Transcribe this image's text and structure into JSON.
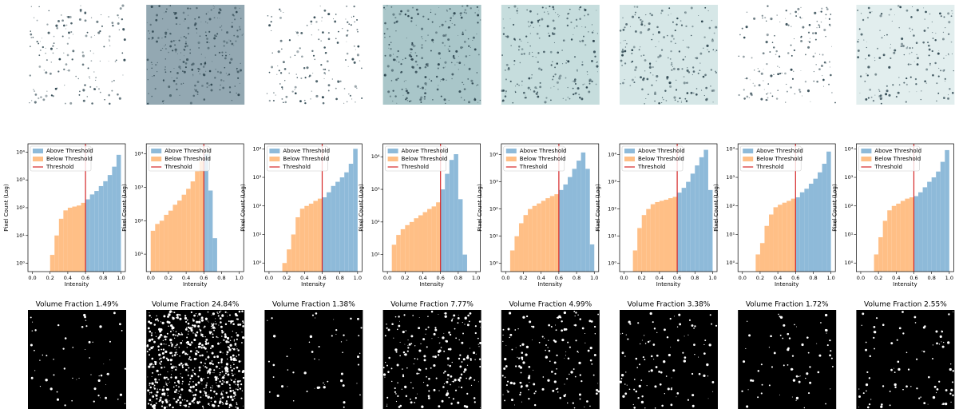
{
  "chart_data": [
    {
      "type": "histogram",
      "xlabel": "Intensity",
      "ylabel": "Pixel Count (Log)",
      "yscale": "log",
      "legend": "upper left",
      "bins": [
        0,
        0.05,
        0.1,
        0.15,
        0.2,
        0.25,
        0.3,
        0.35,
        0.4,
        0.45,
        0.5,
        0.55,
        0.6,
        0.65,
        0.7,
        0.75,
        0.8,
        0.85,
        0.9,
        0.95,
        1
      ],
      "series": [
        {
          "name": "Above Threshold",
          "color": "#8ebad9",
          "values": [
            null,
            null,
            null,
            null,
            null,
            null,
            null,
            null,
            null,
            null,
            null,
            null,
            200,
            300,
            400,
            600,
            900,
            1500,
            3000,
            8000
          ]
        },
        {
          "name": "Below Threshold",
          "color": "#ffbf86",
          "values": [
            null,
            null,
            null,
            null,
            2,
            10,
            40,
            80,
            100,
            110,
            120,
            150,
            null,
            null,
            null,
            null,
            null,
            null,
            null,
            null
          ]
        }
      ],
      "threshold": {
        "name": "Threshold",
        "value": 0.6,
        "color": "#d62728"
      },
      "xlim": [
        -0.05,
        1.05
      ],
      "xticks": [
        {
          "value": 0,
          "label": "0.0"
        },
        0.2,
        0.4,
        0.6,
        0.8,
        {
          "value": 1,
          "label": "1.0"
        }
      ],
      "ylim": [
        0.5,
        20000
      ],
      "yticks": [
        {
          "value": 1,
          "label": "10⁰"
        },
        {
          "value": 10,
          "label": "10¹"
        },
        {
          "value": 100,
          "label": "10²"
        },
        {
          "value": 1000,
          "label": "10³"
        },
        {
          "value": 10000,
          "label": "10⁴"
        }
      ]
    },
    {
      "type": "histogram",
      "xlabel": "Intensity",
      "ylabel": "Pixel Count (Log)",
      "yscale": "log",
      "legend": "upper left",
      "bins": [
        0,
        0.05,
        0.1,
        0.15,
        0.2,
        0.25,
        0.3,
        0.35,
        0.4,
        0.45,
        0.5,
        0.55,
        0.6,
        0.65,
        0.7,
        0.75,
        0.8,
        0.85,
        0.9,
        0.95,
        1
      ],
      "series": [
        {
          "name": "Above Threshold",
          "color": "#8ebad9",
          "values": [
            null,
            null,
            null,
            null,
            null,
            null,
            null,
            null,
            null,
            null,
            null,
            null,
            10000,
            800,
            30,
            2,
            null,
            null,
            null,
            null
          ]
        },
        {
          "name": "Below Threshold",
          "color": "#ffbf86",
          "values": [
            50,
            80,
            100,
            150,
            200,
            300,
            400,
            600,
            900,
            1500,
            3000,
            6000,
            null,
            null,
            null,
            null,
            null,
            null,
            null,
            null
          ]
        }
      ],
      "threshold": {
        "name": "Threshold",
        "value": 0.6,
        "color": "#d62728"
      },
      "xlim": [
        -0.05,
        1.05
      ],
      "xticks": [
        {
          "value": 0,
          "label": "0.0"
        },
        0.2,
        0.4,
        0.6,
        0.8,
        {
          "value": 1,
          "label": "1.0"
        }
      ],
      "ylim": [
        3,
        20000
      ],
      "yticks": [
        {
          "value": 10,
          "label": "10¹"
        },
        {
          "value": 100,
          "label": "10²"
        },
        {
          "value": 1000,
          "label": "10³"
        },
        {
          "value": 10000,
          "label": "10⁴"
        }
      ]
    },
    {
      "type": "histogram",
      "xlabel": "Intensity",
      "ylabel": "Pixel Count (Log)",
      "yscale": "log",
      "legend": "upper left",
      "bins": [
        0,
        0.05,
        0.1,
        0.15,
        0.2,
        0.25,
        0.3,
        0.35,
        0.4,
        0.45,
        0.5,
        0.55,
        0.6,
        0.65,
        0.7,
        0.75,
        0.8,
        0.85,
        0.9,
        0.95,
        1
      ],
      "series": [
        {
          "name": "Above Threshold",
          "color": "#8ebad9",
          "values": [
            null,
            null,
            null,
            null,
            null,
            null,
            null,
            null,
            null,
            null,
            null,
            null,
            200,
            300,
            500,
            700,
            1000,
            1500,
            3000,
            10000
          ]
        },
        {
          "name": "Below Threshold",
          "color": "#ffbf86",
          "values": [
            null,
            null,
            null,
            1,
            3,
            10,
            40,
            80,
            100,
            120,
            150,
            180,
            null,
            null,
            null,
            null,
            null,
            null,
            null,
            null
          ]
        }
      ],
      "threshold": {
        "name": "Threshold",
        "value": 0.6,
        "color": "#d62728"
      },
      "xlim": [
        -0.05,
        1.05
      ],
      "xticks": [
        {
          "value": 0,
          "label": "0.0"
        },
        0.2,
        0.4,
        0.6,
        0.8,
        {
          "value": 1,
          "label": "1.0"
        }
      ],
      "ylim": [
        0.5,
        15000
      ],
      "yticks": [
        {
          "value": 1,
          "label": "10⁰"
        },
        {
          "value": 10,
          "label": "10¹"
        },
        {
          "value": 100,
          "label": "10²"
        },
        {
          "value": 1000,
          "label": "10³"
        },
        {
          "value": 10000,
          "label": "10⁴"
        }
      ]
    },
    {
      "type": "histogram",
      "xlabel": "Intensity",
      "ylabel": "Pixel Count (Log)",
      "yscale": "log",
      "legend": "upper left",
      "bins": [
        0,
        0.05,
        0.1,
        0.15,
        0.2,
        0.25,
        0.3,
        0.35,
        0.4,
        0.45,
        0.5,
        0.55,
        0.6,
        0.65,
        0.7,
        0.75,
        0.8,
        0.85,
        0.9,
        0.95,
        1
      ],
      "series": [
        {
          "name": "Above Threshold",
          "color": "#8ebad9",
          "values": [
            null,
            null,
            null,
            null,
            null,
            null,
            null,
            null,
            null,
            null,
            null,
            null,
            1000,
            3000,
            8000,
            12000,
            500,
            10,
            null,
            null
          ]
        },
        {
          "name": "Below Threshold",
          "color": "#ffbf86",
          "values": [
            null,
            20,
            40,
            60,
            80,
            100,
            130,
            160,
            200,
            250,
            300,
            400,
            null,
            null,
            null,
            null,
            null,
            null,
            null,
            null
          ]
        }
      ],
      "threshold": {
        "name": "Threshold",
        "value": 0.6,
        "color": "#d62728"
      },
      "xlim": [
        -0.05,
        1.05
      ],
      "xticks": [
        {
          "value": 0,
          "label": "0.0"
        },
        0.2,
        0.4,
        0.6,
        0.8,
        {
          "value": 1,
          "label": "1.0"
        }
      ],
      "ylim": [
        3,
        25000
      ],
      "yticks": [
        {
          "value": 10,
          "label": "10¹"
        },
        {
          "value": 100,
          "label": "10²"
        },
        {
          "value": 1000,
          "label": "10³"
        },
        {
          "value": 10000,
          "label": "10⁴"
        }
      ]
    },
    {
      "type": "histogram",
      "xlabel": "Intensity",
      "ylabel": "Pixel Count (Log)",
      "yscale": "log",
      "legend": "upper left",
      "bins": [
        0,
        0.05,
        0.1,
        0.15,
        0.2,
        0.25,
        0.3,
        0.35,
        0.4,
        0.45,
        0.5,
        0.55,
        0.6,
        0.65,
        0.7,
        0.75,
        0.8,
        0.85,
        0.9,
        0.95,
        1
      ],
      "series": [
        {
          "name": "Above Threshold",
          "color": "#8ebad9",
          "values": [
            null,
            null,
            null,
            null,
            null,
            null,
            null,
            null,
            null,
            null,
            null,
            null,
            500,
            800,
            1500,
            3000,
            6000,
            12000,
            3000,
            5
          ]
        },
        {
          "name": "Below Threshold",
          "color": "#ffbf86",
          "values": [
            null,
            3,
            10,
            30,
            60,
            100,
            130,
            160,
            200,
            250,
            300,
            350,
            null,
            null,
            null,
            null,
            null,
            null,
            null,
            null
          ]
        }
      ],
      "threshold": {
        "name": "Threshold",
        "value": 0.6,
        "color": "#d62728"
      },
      "xlim": [
        -0.05,
        1.05
      ],
      "xticks": [
        {
          "value": 0,
          "label": "0.0"
        },
        0.2,
        0.4,
        0.6,
        0.8,
        {
          "value": 1,
          "label": "1.0"
        }
      ],
      "ylim": [
        0.5,
        25000
      ],
      "yticks": [
        {
          "value": 1,
          "label": "10⁰"
        },
        {
          "value": 10,
          "label": "10¹"
        },
        {
          "value": 100,
          "label": "10²"
        },
        {
          "value": 1000,
          "label": "10³"
        },
        {
          "value": 10000,
          "label": "10⁴"
        }
      ]
    },
    {
      "type": "histogram",
      "xlabel": "Intensity",
      "ylabel": "Pixel Count (Log)",
      "yscale": "log",
      "legend": "upper left",
      "bins": [
        0,
        0.05,
        0.1,
        0.15,
        0.2,
        0.25,
        0.3,
        0.35,
        0.4,
        0.45,
        0.5,
        0.55,
        0.6,
        0.65,
        0.7,
        0.75,
        0.8,
        0.85,
        0.9,
        0.95,
        1
      ],
      "series": [
        {
          "name": "Above Threshold",
          "color": "#8ebad9",
          "values": [
            null,
            null,
            null,
            null,
            null,
            null,
            null,
            null,
            null,
            null,
            null,
            null,
            400,
            600,
            1000,
            2000,
            4000,
            8000,
            15000,
            500
          ]
        },
        {
          "name": "Below Threshold",
          "color": "#ffbf86",
          "values": [
            null,
            null,
            3,
            20,
            60,
            100,
            150,
            180,
            200,
            220,
            250,
            280,
            null,
            null,
            null,
            null,
            null,
            null,
            null,
            null
          ]
        }
      ],
      "threshold": {
        "name": "Threshold",
        "value": 0.6,
        "color": "#d62728"
      },
      "xlim": [
        -0.05,
        1.05
      ],
      "xticks": [
        {
          "value": 0,
          "label": "0.0"
        },
        0.2,
        0.4,
        0.6,
        0.8,
        {
          "value": 1,
          "label": "1.0"
        }
      ],
      "ylim": [
        0.5,
        25000
      ],
      "yticks": [
        {
          "value": 1,
          "label": "10⁰"
        },
        {
          "value": 10,
          "label": "10¹"
        },
        {
          "value": 100,
          "label": "10²"
        },
        {
          "value": 1000,
          "label": "10³"
        },
        {
          "value": 10000,
          "label": "10⁴"
        }
      ]
    },
    {
      "type": "histogram",
      "xlabel": "Intensity",
      "ylabel": "Pixel Count (Log)",
      "yscale": "log",
      "legend": "upper left",
      "bins": [
        0,
        0.05,
        0.1,
        0.15,
        0.2,
        0.25,
        0.3,
        0.35,
        0.4,
        0.45,
        0.5,
        0.55,
        0.6,
        0.65,
        0.7,
        0.75,
        0.8,
        0.85,
        0.9,
        0.95,
        1
      ],
      "series": [
        {
          "name": "Above Threshold",
          "color": "#8ebad9",
          "values": [
            null,
            null,
            null,
            null,
            null,
            null,
            null,
            null,
            null,
            null,
            null,
            null,
            200,
            300,
            400,
            600,
            900,
            1500,
            3000,
            8000
          ]
        },
        {
          "name": "Below Threshold",
          "color": "#ffbf86",
          "values": [
            null,
            null,
            null,
            2,
            5,
            20,
            50,
            90,
            110,
            130,
            150,
            180,
            null,
            null,
            null,
            null,
            null,
            null,
            null,
            null
          ]
        }
      ],
      "threshold": {
        "name": "Threshold",
        "value": 0.6,
        "color": "#d62728"
      },
      "xlim": [
        -0.05,
        1.05
      ],
      "xticks": [
        {
          "value": 0,
          "label": "0.0"
        },
        0.2,
        0.4,
        0.6,
        0.8,
        {
          "value": 1,
          "label": "1.0"
        }
      ],
      "ylim": [
        0.5,
        15000
      ],
      "yticks": [
        {
          "value": 1,
          "label": "10⁰"
        },
        {
          "value": 10,
          "label": "10¹"
        },
        {
          "value": 100,
          "label": "10²"
        },
        {
          "value": 1000,
          "label": "10³"
        },
        {
          "value": 10000,
          "label": "10⁴"
        }
      ]
    },
    {
      "type": "histogram",
      "xlabel": "Intensity",
      "ylabel": "Pixel Count (Log)",
      "yscale": "log",
      "legend": "upper left",
      "bins": [
        0,
        0.05,
        0.1,
        0.15,
        0.2,
        0.25,
        0.3,
        0.35,
        0.4,
        0.45,
        0.5,
        0.55,
        0.6,
        0.65,
        0.7,
        0.75,
        0.8,
        0.85,
        0.9,
        0.95,
        1
      ],
      "series": [
        {
          "name": "Above Threshold",
          "color": "#8ebad9",
          "values": [
            null,
            null,
            null,
            null,
            null,
            null,
            null,
            null,
            null,
            null,
            null,
            null,
            220,
            300,
            450,
            700,
            1000,
            1600,
            3500,
            9000
          ]
        },
        {
          "name": "Below Threshold",
          "color": "#ffbf86",
          "values": [
            null,
            null,
            null,
            2,
            8,
            30,
            70,
            100,
            120,
            150,
            180,
            200,
            null,
            null,
            null,
            null,
            null,
            null,
            null,
            null
          ]
        }
      ],
      "threshold": {
        "name": "Threshold",
        "value": 0.6,
        "color": "#d62728"
      },
      "xlim": [
        -0.05,
        1.05
      ],
      "xticks": [
        {
          "value": 0,
          "label": "0.0"
        },
        0.2,
        0.4,
        0.6,
        0.8,
        {
          "value": 1,
          "label": "1.0"
        }
      ],
      "ylim": [
        0.5,
        15000
      ],
      "yticks": [
        {
          "value": 1,
          "label": "10⁰"
        },
        {
          "value": 10,
          "label": "10¹"
        },
        {
          "value": 100,
          "label": "10²"
        },
        {
          "value": 1000,
          "label": "10³"
        },
        {
          "value": 10000,
          "label": "10⁴"
        }
      ]
    }
  ],
  "image_titles": [
    "Volume Fraction 1.49%",
    "Volume Fraction 24.84%",
    "Volume Fraction 1.38%",
    "Volume Fraction 7.77%",
    "Volume Fraction 4.99%",
    "Volume Fraction 3.38%",
    "Volume Fraction 1.72%",
    "Volume Fraction 2.55%"
  ]
}
